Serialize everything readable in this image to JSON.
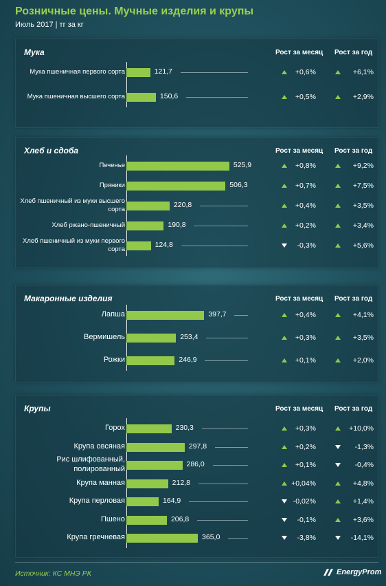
{
  "header": {
    "title": "Розничные  цены. Мучные изделия и крупы",
    "subtitle": "Июль 2017 | тг за кг"
  },
  "columns": {
    "month": "Рост за месяц",
    "year": "Рост за год"
  },
  "footer": {
    "source": "Источник: КС МНЭ РК",
    "brand": "EnergyProm"
  },
  "colors": {
    "bar": "#92c94a",
    "title": "#9bd14e",
    "background": "#1f4f5c",
    "down_marker": "#ffffff"
  },
  "icons": {
    "up": "triangle-up-icon",
    "down": "triangle-down-icon"
  },
  "chart_data": [
    {
      "type": "bar",
      "title": "Мука",
      "categories": [
        "Мука пшеничная первого сорта",
        "Мука пшеничная высшего сорта"
      ],
      "values": [
        121.7,
        150.6
      ],
      "value_labels": [
        "121,7",
        "150,6"
      ],
      "month": [
        "+0,6%",
        "+0,5%"
      ],
      "month_dir": [
        "up",
        "up"
      ],
      "year": [
        "+6,1%",
        "+2,9%"
      ],
      "year_dir": [
        "up",
        "up"
      ]
    },
    {
      "type": "bar",
      "title": "Хлеб и сдоба",
      "categories": [
        "Печенье",
        "Пряники",
        "Хлеб пшеничный из муки высшего сорта",
        "Хлеб ржано-пшеничный",
        "Хлеб пшеничный из муки первого сорта"
      ],
      "values": [
        525.9,
        506.3,
        220.8,
        190.8,
        124.8
      ],
      "value_labels": [
        "525,9",
        "506,3",
        "220,8",
        "190,8",
        "124,8"
      ],
      "month": [
        "+0,8%",
        "+0,7%",
        "+0,4%",
        "+0,2%",
        "-0,3%"
      ],
      "month_dir": [
        "up",
        "up",
        "up",
        "up",
        "down"
      ],
      "year": [
        "+9,2%",
        "+7,5%",
        "+3,5%",
        "+3,4%",
        "+5,6%"
      ],
      "year_dir": [
        "up",
        "up",
        "up",
        "up",
        "up"
      ]
    },
    {
      "type": "bar",
      "title": "Макаронные изделия",
      "categories": [
        "Лапша",
        "Вермишель",
        "Рожки"
      ],
      "values": [
        397.7,
        253.4,
        246.9
      ],
      "value_labels": [
        "397,7",
        "253,4",
        "246,9"
      ],
      "month": [
        "+0,4%",
        "+0,3%",
        "+0,1%"
      ],
      "month_dir": [
        "up",
        "up",
        "up"
      ],
      "year": [
        "+4,1%",
        "+3,5%",
        "+2,0%"
      ],
      "year_dir": [
        "up",
        "up",
        "up"
      ]
    },
    {
      "type": "bar",
      "title": "Крупы",
      "categories": [
        "Горох",
        "Крупа овсяная",
        "Рис шлифованный, полированный",
        "Крупа манная",
        "Крупа перловая",
        "Пшено",
        "Крупа гречневая"
      ],
      "values": [
        230.3,
        297.8,
        286.0,
        212.8,
        164.9,
        206.8,
        365.0
      ],
      "value_labels": [
        "230,3",
        "297,8",
        "286,0",
        "212,8",
        "164,9",
        "206,8",
        "365,0"
      ],
      "month": [
        "+0,3%",
        "+0,2%",
        "+0,1%",
        "+0,04%",
        "-0,02%",
        "-0,1%",
        "-3,8%"
      ],
      "month_dir": [
        "up",
        "up",
        "up",
        "up",
        "down",
        "down",
        "down"
      ],
      "year": [
        "+10,0%",
        "-1,3%",
        "-0,4%",
        "+4,8%",
        "+1,4%",
        "+3,6%",
        "-14,1%"
      ],
      "year_dir": [
        "up",
        "down",
        "down",
        "up",
        "up",
        "up",
        "down"
      ]
    }
  ]
}
